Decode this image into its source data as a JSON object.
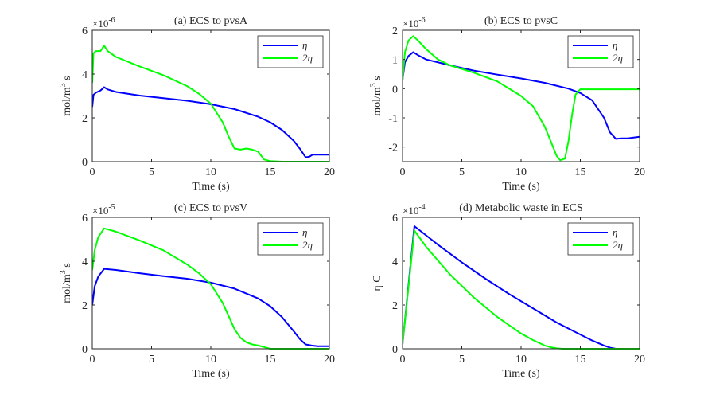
{
  "chart_data": [
    {
      "type": "line",
      "title": "(a) ECS to pvsA",
      "xlabel": "Time (s)",
      "ylabel": "mol/m^3 s",
      "multiplier": "×10",
      "exponent": "-6",
      "xlim": [
        0,
        20
      ],
      "ylim": [
        0,
        6
      ],
      "xticks": [
        0,
        5,
        10,
        15,
        20
      ],
      "yticks": [
        0,
        2,
        4,
        6
      ],
      "xtick_labels": [
        "0",
        "5",
        "10",
        "15",
        "20"
      ],
      "ytick_labels": [
        "0",
        "2",
        "4",
        "6"
      ],
      "legend_position": "top-right",
      "series": [
        {
          "name": "η",
          "color": "#0000ff",
          "x": [
            0,
            0.1,
            0.3,
            0.7,
            1.0,
            1.3,
            2,
            4,
            6,
            8,
            10,
            12,
            14,
            15,
            16,
            17,
            17.5,
            18,
            18.3,
            18.6,
            19,
            20
          ],
          "y": [
            2.5,
            3.05,
            3.15,
            3.25,
            3.4,
            3.3,
            3.18,
            3.02,
            2.9,
            2.78,
            2.62,
            2.4,
            2.05,
            1.8,
            1.45,
            0.95,
            0.6,
            0.2,
            0.22,
            0.32,
            0.32,
            0.32
          ]
        },
        {
          "name": "2η",
          "color": "#00ff00",
          "x": [
            0,
            0.1,
            0.3,
            0.7,
            1.0,
            1.3,
            2,
            4,
            6,
            8,
            9,
            10,
            11,
            11.5,
            12,
            12.5,
            13,
            13.5,
            14,
            14.5,
            15,
            16,
            20
          ],
          "y": [
            3.6,
            4.95,
            5.05,
            5.05,
            5.3,
            5.05,
            4.78,
            4.35,
            3.95,
            3.45,
            3.1,
            2.65,
            1.8,
            1.15,
            0.6,
            0.55,
            0.6,
            0.55,
            0.45,
            0.1,
            0.03,
            0.0,
            0.0
          ]
        }
      ]
    },
    {
      "type": "line",
      "title": "(b) ECS to pvsC",
      "xlabel": "Time (s)",
      "ylabel": "mol/m^3 s",
      "multiplier": "×10",
      "exponent": "-6",
      "xlim": [
        0,
        20
      ],
      "ylim": [
        -2.5,
        2
      ],
      "xticks": [
        0,
        5,
        10,
        15,
        20
      ],
      "yticks": [
        -2,
        -1,
        0,
        1,
        2
      ],
      "xtick_labels": [
        "0",
        "5",
        "10",
        "15",
        "20"
      ],
      "ytick_labels": [
        "-2",
        "-1",
        "0",
        "1",
        "2"
      ],
      "legend_position": "top-right",
      "series": [
        {
          "name": "η",
          "color": "#0000ff",
          "x": [
            0,
            0.2,
            0.5,
            0.9,
            1.3,
            2,
            4,
            6,
            8,
            10,
            12,
            14,
            15,
            16,
            17,
            17.5,
            18,
            18.5,
            19,
            20
          ],
          "y": [
            0.3,
            0.9,
            1.12,
            1.25,
            1.15,
            1.0,
            0.8,
            0.62,
            0.48,
            0.35,
            0.2,
            0.0,
            -0.15,
            -0.4,
            -1.0,
            -1.5,
            -1.72,
            -1.7,
            -1.7,
            -1.65
          ]
        },
        {
          "name": "2η",
          "color": "#00ff00",
          "x": [
            0,
            0.2,
            0.5,
            0.9,
            1.3,
            2,
            3,
            4,
            6,
            8,
            10,
            11,
            12,
            12.5,
            13,
            13.3,
            13.7,
            14,
            14.3,
            14.6,
            15,
            20
          ],
          "y": [
            0.25,
            1.25,
            1.65,
            1.8,
            1.65,
            1.35,
            1.0,
            0.8,
            0.55,
            0.25,
            -0.25,
            -0.6,
            -1.3,
            -1.8,
            -2.3,
            -2.45,
            -2.4,
            -1.8,
            -0.9,
            -0.2,
            -0.02,
            -0.02
          ]
        }
      ]
    },
    {
      "type": "line",
      "title": "(c) ECS to pvsV",
      "xlabel": "Time (s)",
      "ylabel": "mol/m^3 s",
      "multiplier": "×10",
      "exponent": "-5",
      "xlim": [
        0,
        20
      ],
      "ylim": [
        0,
        6
      ],
      "xticks": [
        0,
        5,
        10,
        15,
        20
      ],
      "yticks": [
        0,
        2,
        4,
        6
      ],
      "xtick_labels": [
        "0",
        "5",
        "10",
        "15",
        "20"
      ],
      "ytick_labels": [
        "0",
        "2",
        "4",
        "6"
      ],
      "legend_position": "top-right",
      "series": [
        {
          "name": "η",
          "color": "#0000ff",
          "x": [
            0,
            0.2,
            0.5,
            1.0,
            2,
            4,
            6,
            8,
            10,
            12,
            14,
            15,
            16,
            17,
            17.5,
            18,
            18.5,
            19,
            20
          ],
          "y": [
            2.0,
            2.85,
            3.3,
            3.65,
            3.6,
            3.45,
            3.32,
            3.2,
            3.02,
            2.75,
            2.3,
            1.95,
            1.45,
            0.8,
            0.45,
            0.2,
            0.15,
            0.12,
            0.12
          ]
        },
        {
          "name": "2η",
          "color": "#00ff00",
          "x": [
            0,
            0.2,
            0.5,
            1.0,
            2,
            4,
            6,
            8,
            9,
            10,
            11,
            11.5,
            12,
            12.5,
            13,
            13.5,
            14,
            14.5,
            15,
            20
          ],
          "y": [
            3.6,
            4.5,
            5.1,
            5.5,
            5.35,
            4.95,
            4.5,
            3.85,
            3.45,
            2.95,
            2.1,
            1.5,
            0.9,
            0.5,
            0.3,
            0.2,
            0.15,
            0.08,
            0.0,
            0.0
          ]
        }
      ]
    },
    {
      "type": "line",
      "title": "(d) Metabolic waste in ECS",
      "xlabel": "Time (s)",
      "ylabel": "η C",
      "multiplier": "×10",
      "exponent": "-4",
      "xlim": [
        0,
        20
      ],
      "ylim": [
        0,
        6
      ],
      "xticks": [
        0,
        5,
        10,
        15,
        20
      ],
      "yticks": [
        0,
        2,
        4,
        6
      ],
      "xtick_labels": [
        "0",
        "5",
        "10",
        "15",
        "20"
      ],
      "ytick_labels": [
        "0",
        "2",
        "4",
        "6"
      ],
      "legend_position": "top-right",
      "series": [
        {
          "name": "η",
          "color": "#0000ff",
          "x": [
            0,
            1.0,
            3,
            5,
            7,
            9,
            11,
            13,
            15,
            16,
            17,
            17.5,
            18,
            20
          ],
          "y": [
            0.2,
            5.6,
            4.75,
            3.95,
            3.2,
            2.5,
            1.85,
            1.2,
            0.65,
            0.38,
            0.15,
            0.05,
            0.0,
            0.0
          ]
        },
        {
          "name": "2η",
          "color": "#00ff00",
          "x": [
            0,
            1.0,
            2,
            4,
            6,
            8,
            10,
            11,
            12,
            12.5,
            13,
            13.5,
            20
          ],
          "y": [
            0.2,
            5.4,
            4.65,
            3.4,
            2.35,
            1.45,
            0.7,
            0.4,
            0.15,
            0.07,
            0.02,
            0.0,
            0.0
          ]
        }
      ]
    }
  ]
}
